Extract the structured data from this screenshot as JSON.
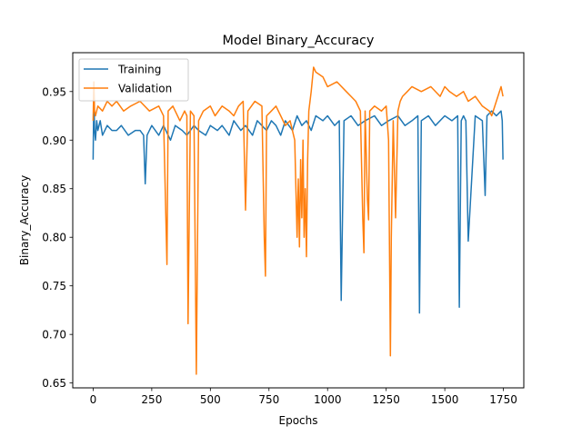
{
  "chart_data": {
    "type": "line",
    "title": "Model Binary_Accuracy",
    "xlabel": "Epochs",
    "ylabel": "Binary_Accuracy",
    "xlim": [
      -87,
      1837
    ],
    "ylim": [
      0.645,
      0.99
    ],
    "x_ticks": [
      0,
      250,
      500,
      750,
      1000,
      1250,
      1500,
      1750
    ],
    "x_tick_labels": [
      "0",
      "250",
      "500",
      "750",
      "1000",
      "1250",
      "1500",
      "1750"
    ],
    "y_ticks": [
      0.65,
      0.7,
      0.75,
      0.8,
      0.85,
      0.9,
      0.95
    ],
    "y_tick_labels": [
      "0.65",
      "0.70",
      "0.75",
      "0.80",
      "0.85",
      "0.90",
      "0.95"
    ],
    "grid": false,
    "legend_position": "top-left",
    "series": [
      {
        "name": "Training",
        "color": "#1f77b4",
        "x": [
          0,
          3,
          6,
          10,
          15,
          20,
          30,
          40,
          60,
          80,
          100,
          120,
          150,
          180,
          200,
          215,
          222,
          230,
          250,
          280,
          300,
          330,
          350,
          380,
          400,
          430,
          450,
          480,
          500,
          530,
          550,
          580,
          600,
          630,
          650,
          680,
          700,
          720,
          740,
          760,
          780,
          800,
          820,
          850,
          870,
          890,
          910,
          930,
          950,
          980,
          1000,
          1030,
          1050,
          1058,
          1070,
          1100,
          1130,
          1160,
          1200,
          1230,
          1260,
          1300,
          1330,
          1360,
          1385,
          1392,
          1400,
          1430,
          1460,
          1500,
          1530,
          1555,
          1562,
          1570,
          1580,
          1590,
          1600,
          1630,
          1660,
          1672,
          1680,
          1700,
          1720,
          1740,
          1745,
          1748
        ],
        "values": [
          0.88,
          0.95,
          0.91,
          0.9,
          0.92,
          0.91,
          0.92,
          0.905,
          0.915,
          0.91,
          0.91,
          0.915,
          0.905,
          0.91,
          0.91,
          0.905,
          0.855,
          0.905,
          0.915,
          0.905,
          0.915,
          0.9,
          0.915,
          0.91,
          0.905,
          0.915,
          0.91,
          0.905,
          0.915,
          0.91,
          0.915,
          0.905,
          0.92,
          0.91,
          0.915,
          0.905,
          0.92,
          0.915,
          0.91,
          0.92,
          0.915,
          0.905,
          0.92,
          0.91,
          0.925,
          0.915,
          0.92,
          0.91,
          0.925,
          0.92,
          0.925,
          0.915,
          0.92,
          0.735,
          0.92,
          0.925,
          0.915,
          0.92,
          0.925,
          0.915,
          0.92,
          0.925,
          0.915,
          0.92,
          0.925,
          0.722,
          0.92,
          0.925,
          0.915,
          0.925,
          0.92,
          0.925,
          0.728,
          0.92,
          0.925,
          0.92,
          0.796,
          0.925,
          0.92,
          0.843,
          0.925,
          0.93,
          0.925,
          0.93,
          0.92,
          0.88
        ]
      },
      {
        "name": "Validation",
        "color": "#ff7f0e",
        "x": [
          0,
          3,
          6,
          10,
          20,
          40,
          60,
          80,
          100,
          130,
          160,
          200,
          240,
          280,
          300,
          315,
          320,
          340,
          370,
          390,
          400,
          405,
          415,
          430,
          440,
          450,
          470,
          500,
          520,
          550,
          580,
          600,
          620,
          640,
          650,
          660,
          690,
          720,
          730,
          735,
          740,
          760,
          780,
          800,
          820,
          840,
          860,
          870,
          875,
          880,
          885,
          890,
          895,
          900,
          905,
          910,
          915,
          920,
          925,
          930,
          940,
          950,
          980,
          1000,
          1040,
          1080,
          1100,
          1120,
          1140,
          1150,
          1155,
          1160,
          1170,
          1175,
          1180,
          1200,
          1230,
          1250,
          1260,
          1268,
          1272,
          1280,
          1290,
          1300,
          1310,
          1320,
          1340,
          1360,
          1400,
          1440,
          1480,
          1500,
          1520,
          1550,
          1580,
          1600,
          1630,
          1660,
          1690,
          1700,
          1720,
          1740,
          1748
        ],
        "values": [
          0.92,
          0.96,
          0.93,
          0.925,
          0.935,
          0.93,
          0.94,
          0.935,
          0.94,
          0.93,
          0.935,
          0.94,
          0.93,
          0.935,
          0.925,
          0.772,
          0.93,
          0.935,
          0.92,
          0.93,
          0.925,
          0.711,
          0.93,
          0.925,
          0.659,
          0.92,
          0.93,
          0.935,
          0.925,
          0.935,
          0.93,
          0.925,
          0.935,
          0.94,
          0.828,
          0.93,
          0.94,
          0.935,
          0.8,
          0.76,
          0.925,
          0.93,
          0.935,
          0.925,
          0.915,
          0.92,
          0.9,
          0.8,
          0.86,
          0.79,
          0.88,
          0.82,
          0.9,
          0.8,
          0.85,
          0.78,
          0.88,
          0.93,
          0.94,
          0.95,
          0.975,
          0.97,
          0.965,
          0.955,
          0.96,
          0.95,
          0.945,
          0.94,
          0.93,
          0.82,
          0.784,
          0.93,
          0.84,
          0.818,
          0.93,
          0.935,
          0.93,
          0.935,
          0.9,
          0.678,
          0.8,
          0.92,
          0.82,
          0.93,
          0.94,
          0.945,
          0.95,
          0.955,
          0.95,
          0.955,
          0.945,
          0.955,
          0.95,
          0.945,
          0.95,
          0.94,
          0.945,
          0.935,
          0.93,
          0.925,
          0.94,
          0.955,
          0.945
        ]
      }
    ]
  }
}
